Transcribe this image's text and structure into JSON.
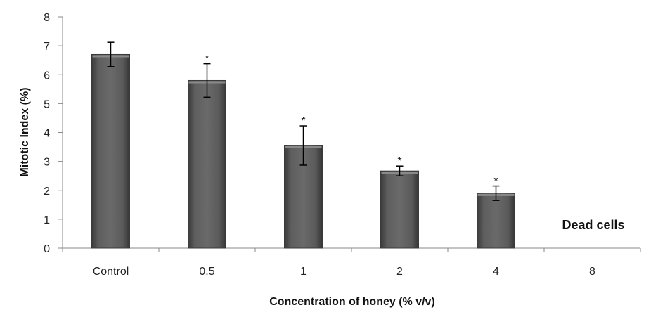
{
  "chart_data": {
    "type": "bar",
    "title": "",
    "xlabel": "Concentration of honey (% v/v)",
    "ylabel": "Mitotic Index (%)",
    "ylim": [
      0,
      8
    ],
    "yticks": [
      "0",
      "1",
      "2",
      "3",
      "4",
      "5",
      "6",
      "7",
      "8"
    ],
    "categories": [
      "Control",
      "0.5",
      "1",
      "2",
      "4",
      "8"
    ],
    "values": [
      6.7,
      5.8,
      3.55,
      2.67,
      1.9,
      null
    ],
    "error": [
      0.42,
      0.58,
      0.68,
      0.17,
      0.25,
      null
    ],
    "significance": [
      "",
      "*",
      "*",
      "*",
      "*",
      ""
    ],
    "annotation": "Dead cells",
    "grid": false,
    "legend": "none",
    "bar_color": "#595959"
  }
}
